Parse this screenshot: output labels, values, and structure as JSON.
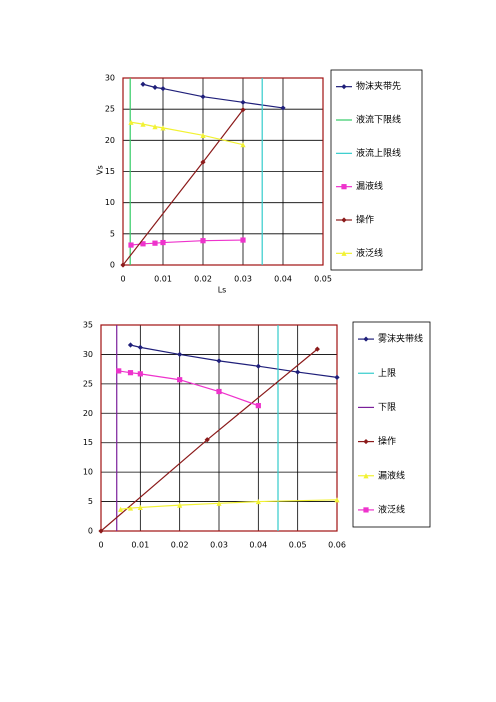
{
  "chart_data": [
    {
      "type": "line",
      "x_label": "Ls",
      "y_label": "Vs",
      "xlim": [
        0,
        0.05
      ],
      "xticks": [
        0,
        0.01,
        0.02,
        0.03,
        0.04,
        0.05
      ],
      "ylim": [
        0,
        30
      ],
      "yticks": [
        0,
        5,
        10,
        15,
        20,
        25,
        30
      ],
      "grid": true,
      "series": [
        {
          "name": "物沫夹带先",
          "color": "#1f1f7a",
          "marker": "diamond",
          "x": [
            0.005,
            0.008,
            0.01,
            0.02,
            0.03,
            0.04
          ],
          "values": [
            29,
            28.5,
            28.3,
            27,
            26.1,
            25.2
          ]
        },
        {
          "name": "液流下限线",
          "color": "#33cc66",
          "marker": "none",
          "x": [
            0.0018,
            0.0018
          ],
          "values": [
            0,
            30
          ]
        },
        {
          "name": "液流上限线",
          "color": "#33cccc",
          "marker": "none",
          "x": [
            0.0348,
            0.0348
          ],
          "values": [
            0,
            30
          ]
        },
        {
          "name": "漏液线",
          "color": "#ee33cc",
          "marker": "square",
          "x": [
            0.002,
            0.005,
            0.008,
            0.01,
            0.02,
            0.03
          ],
          "values": [
            3.2,
            3.4,
            3.5,
            3.6,
            3.9,
            4.0
          ]
        },
        {
          "name": "操作",
          "color": "#8b1a1a",
          "marker": "diamond",
          "x": [
            0,
            0.02,
            0.03
          ],
          "values": [
            0,
            16.5,
            24.9
          ]
        },
        {
          "name": "液泛线",
          "color": "#f2f233",
          "marker": "triangle",
          "x": [
            0.002,
            0.005,
            0.008,
            0.01,
            0.02,
            0.03
          ],
          "values": [
            22.9,
            22.6,
            22.2,
            22,
            20.8,
            19.3
          ]
        }
      ]
    },
    {
      "type": "line",
      "xlim": [
        0,
        0.06
      ],
      "xticks": [
        0,
        0.01,
        0.02,
        0.03,
        0.04,
        0.05,
        0.06
      ],
      "ylim": [
        0,
        35
      ],
      "yticks": [
        0,
        5,
        10,
        15,
        20,
        25,
        30,
        35
      ],
      "grid": true,
      "series": [
        {
          "name": "雾沫夹带线",
          "color": "#1f1f7a",
          "marker": "diamond",
          "x": [
            0.0075,
            0.01,
            0.02,
            0.03,
            0.04,
            0.05,
            0.06
          ],
          "values": [
            31.6,
            31.2,
            30,
            28.9,
            28,
            27,
            26.1
          ]
        },
        {
          "name": "上限",
          "color": "#33cccc",
          "marker": "none",
          "x": [
            0.045,
            0.045
          ],
          "values": [
            0,
            35
          ]
        },
        {
          "name": "下限",
          "color": "#7a1f9a",
          "marker": "none",
          "x": [
            0.004,
            0.004
          ],
          "values": [
            0,
            35
          ]
        },
        {
          "name": "操作",
          "color": "#8b1a1a",
          "marker": "diamond",
          "x": [
            0,
            0.027,
            0.055
          ],
          "values": [
            0,
            15.5,
            30.9
          ]
        },
        {
          "name": "漏液线",
          "color": "#f2f233",
          "marker": "triangle",
          "x": [
            0.005,
            0.0075,
            0.01,
            0.02,
            0.03,
            0.04,
            0.06
          ],
          "values": [
            3.7,
            3.9,
            4,
            4.4,
            4.7,
            5,
            5.3
          ]
        },
        {
          "name": "液泛线",
          "color": "#ee33cc",
          "marker": "square",
          "x": [
            0.0045,
            0.0075,
            0.01,
            0.02,
            0.03,
            0.04
          ],
          "values": [
            27.2,
            26.9,
            26.7,
            25.7,
            23.7,
            21.3
          ]
        }
      ]
    }
  ]
}
